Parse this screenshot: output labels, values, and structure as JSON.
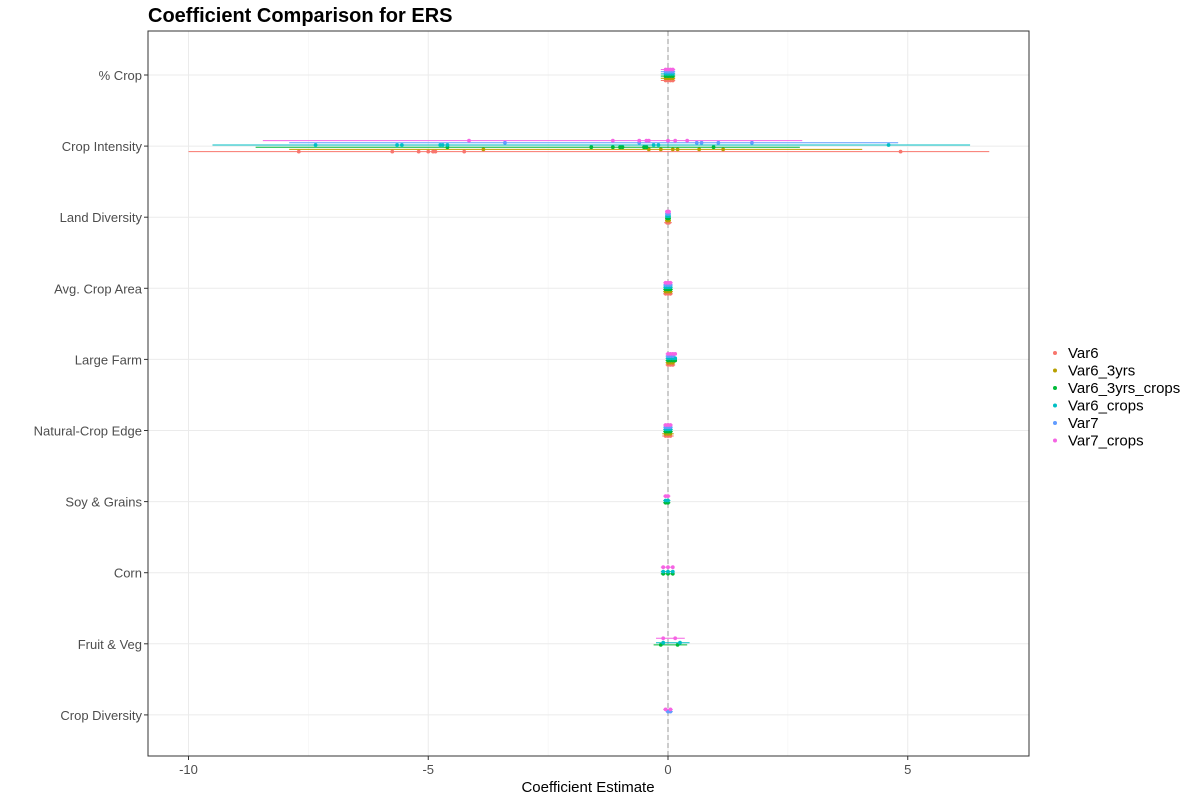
{
  "chart_data": {
    "type": "scatter",
    "title": "Coefficient Comparison for ERS",
    "xlabel": "Coefficient Estimate",
    "ylabel": "",
    "xlim": [
      -10,
      5
    ],
    "x_ticks": [
      "-10",
      "-5",
      "0",
      "5"
    ],
    "reference_line": {
      "x": 0,
      "style": "dashed",
      "color": "#999999"
    },
    "grid": true,
    "legend_position": "right",
    "categories": [
      "% Crop",
      "Crop Intensity",
      "Land Diversity",
      "Avg. Crop Area",
      "Large Farm",
      "Natural-Crop Edge",
      "Soy & Grains",
      "Corn",
      "Fruit & Veg",
      "Crop Diversity"
    ],
    "series": [
      {
        "name": "Var6",
        "color": "#F8766D",
        "points": [
          {
            "category": "% Crop",
            "values": [
              -0.05,
              0.0,
              0.05,
              0.1
            ],
            "ci": [
              -0.15,
              0.15
            ]
          },
          {
            "category": "Crop Intensity",
            "values": [
              -7.7,
              -5.75,
              -5.2,
              -5.0,
              -4.9,
              -4.85,
              -4.25,
              4.85
            ],
            "ci": [
              -10.0,
              6.7
            ]
          },
          {
            "category": "Land Diversity",
            "values": [
              -0.02,
              0.0,
              0.02
            ],
            "ci": [
              -0.08,
              0.08
            ]
          },
          {
            "category": "Avg. Crop Area",
            "values": [
              -0.05,
              0.0,
              0.05
            ],
            "ci": [
              -0.1,
              0.1
            ]
          },
          {
            "category": "Large Farm",
            "values": [
              0.0,
              0.05,
              0.1
            ],
            "ci": [
              -0.05,
              0.15
            ]
          },
          {
            "category": "Natural-Crop Edge",
            "values": [
              -0.05,
              0.0,
              0.05
            ],
            "ci": [
              -0.12,
              0.12
            ]
          }
        ]
      },
      {
        "name": "Var6_3yrs",
        "color": "#B79F00",
        "points": [
          {
            "category": "% Crop",
            "values": [
              -0.05,
              0.0,
              0.05,
              0.1
            ],
            "ci": [
              -0.15,
              0.15
            ]
          },
          {
            "category": "Crop Intensity",
            "values": [
              -3.85,
              -0.4,
              -0.15,
              0.1,
              0.2,
              0.65,
              1.15
            ],
            "ci": [
              -7.9,
              4.05
            ]
          },
          {
            "category": "Land Diversity",
            "values": [
              -0.02,
              0.0,
              0.02
            ],
            "ci": [
              -0.06,
              0.06
            ]
          },
          {
            "category": "Avg. Crop Area",
            "values": [
              -0.05,
              0.0,
              0.05
            ],
            "ci": [
              -0.1,
              0.1
            ]
          },
          {
            "category": "Large Farm",
            "values": [
              0.0,
              0.05,
              0.1
            ],
            "ci": [
              -0.05,
              0.15
            ]
          },
          {
            "category": "Natural-Crop Edge",
            "values": [
              -0.05,
              0.0,
              0.05
            ],
            "ci": [
              -0.12,
              0.12
            ]
          }
        ]
      },
      {
        "name": "Var6_3yrs_crops",
        "color": "#00BA38",
        "points": [
          {
            "category": "% Crop",
            "values": [
              -0.05,
              0.0,
              0.05,
              0.1
            ],
            "ci": [
              -0.15,
              0.15
            ]
          },
          {
            "category": "Crop Intensity",
            "values": [
              -4.6,
              -1.6,
              -1.15,
              -1.0,
              -0.95,
              -0.5,
              -0.45,
              0.95
            ],
            "ci": [
              -8.6,
              2.75
            ]
          },
          {
            "category": "Land Diversity",
            "values": [
              -0.02,
              0.0,
              0.02
            ],
            "ci": [
              -0.06,
              0.06
            ]
          },
          {
            "category": "Avg. Crop Area",
            "values": [
              -0.05,
              0.0,
              0.05
            ],
            "ci": [
              -0.1,
              0.1
            ]
          },
          {
            "category": "Large Farm",
            "values": [
              0.0,
              0.05,
              0.1,
              0.15
            ],
            "ci": [
              -0.05,
              0.18
            ]
          },
          {
            "category": "Natural-Crop Edge",
            "values": [
              -0.05,
              0.0,
              0.05
            ],
            "ci": [
              -0.1,
              0.1
            ]
          },
          {
            "category": "Soy & Grains",
            "values": [
              -0.05,
              0.0
            ],
            "ci": [
              -0.1,
              0.05
            ]
          },
          {
            "category": "Corn",
            "values": [
              -0.1,
              0.0,
              0.1
            ],
            "ci": [
              -0.15,
              0.12
            ]
          },
          {
            "category": "Fruit & Veg",
            "values": [
              -0.15,
              0.2
            ],
            "ci": [
              -0.3,
              0.4
            ]
          }
        ]
      },
      {
        "name": "Var6_crops",
        "color": "#00BFC4",
        "points": [
          {
            "category": "% Crop",
            "values": [
              -0.05,
              0.0,
              0.05,
              0.1
            ],
            "ci": [
              -0.15,
              0.15
            ]
          },
          {
            "category": "Crop Intensity",
            "values": [
              -7.35,
              -5.65,
              -5.55,
              -4.75,
              -4.7,
              -4.6,
              -0.3,
              -0.2,
              4.6
            ],
            "ci": [
              -9.5,
              6.3
            ]
          },
          {
            "category": "Land Diversity",
            "values": [
              -0.02,
              0.0,
              0.02
            ],
            "ci": [
              -0.06,
              0.06
            ]
          },
          {
            "category": "Avg. Crop Area",
            "values": [
              -0.05,
              0.0,
              0.05
            ],
            "ci": [
              -0.1,
              0.1
            ]
          },
          {
            "category": "Large Farm",
            "values": [
              0.0,
              0.05,
              0.1,
              0.15
            ],
            "ci": [
              -0.05,
              0.18
            ]
          },
          {
            "category": "Natural-Crop Edge",
            "values": [
              -0.05,
              0.0,
              0.05
            ],
            "ci": [
              -0.1,
              0.1
            ]
          },
          {
            "category": "Soy & Grains",
            "values": [
              -0.05,
              0.0
            ],
            "ci": [
              -0.1,
              0.05
            ]
          },
          {
            "category": "Corn",
            "values": [
              -0.1,
              0.0,
              0.1
            ],
            "ci": [
              -0.15,
              0.12
            ]
          },
          {
            "category": "Fruit & Veg",
            "values": [
              -0.1,
              0.25
            ],
            "ci": [
              -0.25,
              0.45
            ]
          }
        ]
      },
      {
        "name": "Var7",
        "color": "#619CFF",
        "points": [
          {
            "category": "% Crop",
            "values": [
              -0.05,
              0.0,
              0.05,
              0.1
            ],
            "ci": [
              -0.15,
              0.15
            ]
          },
          {
            "category": "Crop Intensity",
            "values": [
              -3.4,
              -0.6,
              0.6,
              0.7,
              1.05,
              1.75
            ],
            "ci": [
              -7.9,
              4.8
            ]
          },
          {
            "category": "Land Diversity",
            "values": [
              -0.02,
              0.0,
              0.02
            ],
            "ci": [
              -0.06,
              0.06
            ]
          },
          {
            "category": "Avg. Crop Area",
            "values": [
              -0.05,
              0.0,
              0.05
            ],
            "ci": [
              -0.1,
              0.1
            ]
          },
          {
            "category": "Large Farm",
            "values": [
              0.0,
              0.05,
              0.1
            ],
            "ci": [
              -0.05,
              0.15
            ]
          },
          {
            "category": "Natural-Crop Edge",
            "values": [
              -0.05,
              0.0,
              0.05
            ],
            "ci": [
              -0.1,
              0.1
            ]
          },
          {
            "category": "Crop Diversity",
            "values": [
              0.0,
              0.05
            ],
            "ci": [
              -0.05,
              0.1
            ]
          }
        ]
      },
      {
        "name": "Var7_crops",
        "color": "#F564E3",
        "points": [
          {
            "category": "% Crop",
            "values": [
              -0.05,
              0.0,
              0.05,
              0.1
            ],
            "ci": [
              -0.15,
              0.15
            ]
          },
          {
            "category": "Crop Intensity",
            "values": [
              -4.15,
              -1.15,
              -0.6,
              -0.45,
              -0.4,
              0.0,
              0.15,
              0.4
            ],
            "ci": [
              -8.45,
              2.8
            ]
          },
          {
            "category": "Land Diversity",
            "values": [
              -0.02,
              0.0,
              0.02
            ],
            "ci": [
              -0.06,
              0.06
            ]
          },
          {
            "category": "Avg. Crop Area",
            "values": [
              -0.05,
              0.0,
              0.05
            ],
            "ci": [
              -0.1,
              0.1
            ]
          },
          {
            "category": "Large Farm",
            "values": [
              0.0,
              0.05,
              0.1,
              0.15
            ],
            "ci": [
              -0.05,
              0.18
            ]
          },
          {
            "category": "Natural-Crop Edge",
            "values": [
              -0.05,
              0.0,
              0.05
            ],
            "ci": [
              -0.1,
              0.1
            ]
          },
          {
            "category": "Soy & Grains",
            "values": [
              -0.05,
              0.0
            ],
            "ci": [
              -0.1,
              0.05
            ]
          },
          {
            "category": "Corn",
            "values": [
              -0.1,
              0.0,
              0.1
            ],
            "ci": [
              -0.15,
              0.12
            ]
          },
          {
            "category": "Fruit & Veg",
            "values": [
              -0.1,
              0.15
            ],
            "ci": [
              -0.25,
              0.35
            ]
          },
          {
            "category": "Crop Diversity",
            "values": [
              -0.05,
              0.05
            ],
            "ci": [
              -0.1,
              0.1
            ]
          }
        ]
      }
    ]
  }
}
